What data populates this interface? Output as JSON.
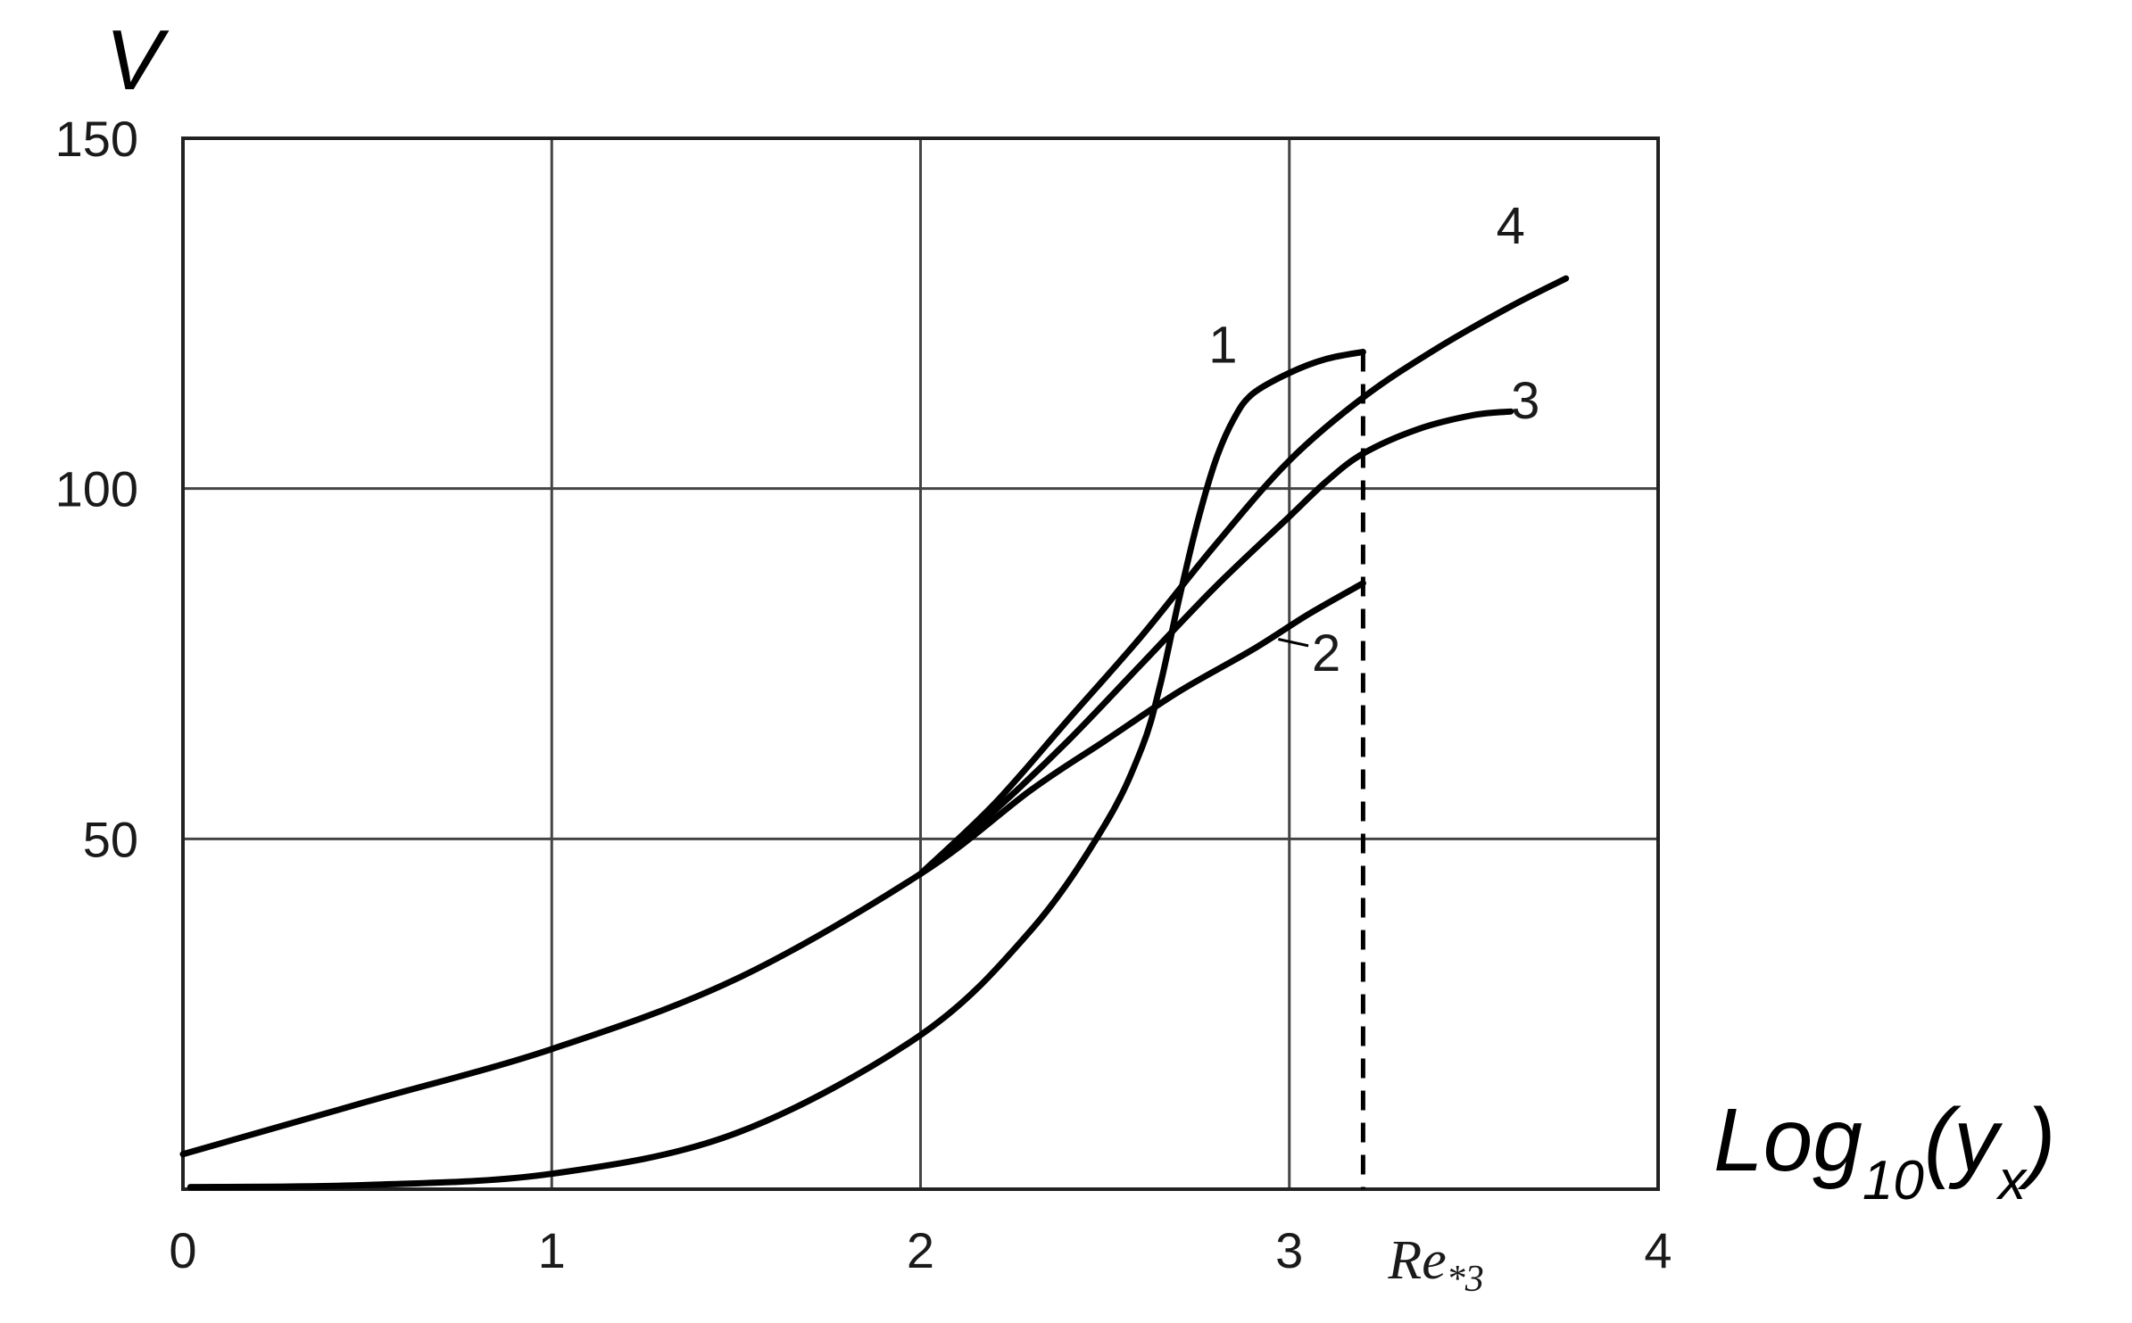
{
  "chart_data": {
    "type": "line",
    "title": "",
    "xlabel": "Log10(yx)",
    "xlabel_parts": {
      "main": "Log",
      "sub1": "10",
      "open": "(y",
      "sub2": "x",
      "close": ")"
    },
    "ylabel": "V",
    "xlim": [
      0,
      4
    ],
    "ylim": [
      0,
      150
    ],
    "x_ticks": [
      "0",
      "1",
      "2",
      "3",
      "4"
    ],
    "y_ticks": [
      "50",
      "100",
      "150"
    ],
    "grid": true,
    "reference_line": {
      "x": 3.2,
      "label_main": "Re",
      "label_sub": "*3",
      "style": "dashed"
    },
    "series": [
      {
        "name": "1",
        "points": [
          [
            0.02,
            0.3
          ],
          [
            0.5,
            0.6
          ],
          [
            1.0,
            2.2
          ],
          [
            1.5,
            8
          ],
          [
            2.0,
            22
          ],
          [
            2.3,
            37
          ],
          [
            2.5,
            52
          ],
          [
            2.6,
            63
          ],
          [
            2.65,
            72
          ],
          [
            2.7,
            84
          ],
          [
            2.75,
            95
          ],
          [
            2.8,
            104
          ],
          [
            2.85,
            110
          ],
          [
            2.9,
            113.5
          ],
          [
            3.0,
            116.5
          ],
          [
            3.1,
            118.5
          ],
          [
            3.2,
            119.5
          ]
        ]
      },
      {
        "name": "2",
        "points": [
          [
            0.0,
            5
          ],
          [
            0.5,
            12.5
          ],
          [
            1.0,
            20
          ],
          [
            1.5,
            30
          ],
          [
            2.0,
            45
          ],
          [
            2.3,
            57
          ],
          [
            2.5,
            64
          ],
          [
            2.7,
            71
          ],
          [
            2.9,
            77
          ],
          [
            3.05,
            82
          ],
          [
            3.2,
            86.5
          ]
        ]
      },
      {
        "name": "3",
        "points": [
          [
            2.0,
            45
          ],
          [
            2.2,
            54
          ],
          [
            2.4,
            64
          ],
          [
            2.6,
            75
          ],
          [
            2.8,
            86
          ],
          [
            3.0,
            96
          ],
          [
            3.1,
            101
          ],
          [
            3.2,
            105
          ],
          [
            3.35,
            108.5
          ],
          [
            3.5,
            110.5
          ],
          [
            3.6,
            111
          ]
        ]
      },
      {
        "name": "4",
        "points": [
          [
            2.0,
            45
          ],
          [
            2.2,
            55
          ],
          [
            2.4,
            67
          ],
          [
            2.6,
            79
          ],
          [
            2.8,
            92
          ],
          [
            3.0,
            104
          ],
          [
            3.2,
            113
          ],
          [
            3.4,
            120
          ],
          [
            3.6,
            126
          ],
          [
            3.75,
            130
          ]
        ]
      }
    ],
    "series_labels": [
      {
        "text": "1",
        "x": 2.82,
        "y": 118
      },
      {
        "text": "2",
        "x": 3.1,
        "y": 74
      },
      {
        "text": "3",
        "x": 3.64,
        "y": 110
      },
      {
        "text": "4",
        "x": 3.6,
        "y": 135
      }
    ]
  }
}
